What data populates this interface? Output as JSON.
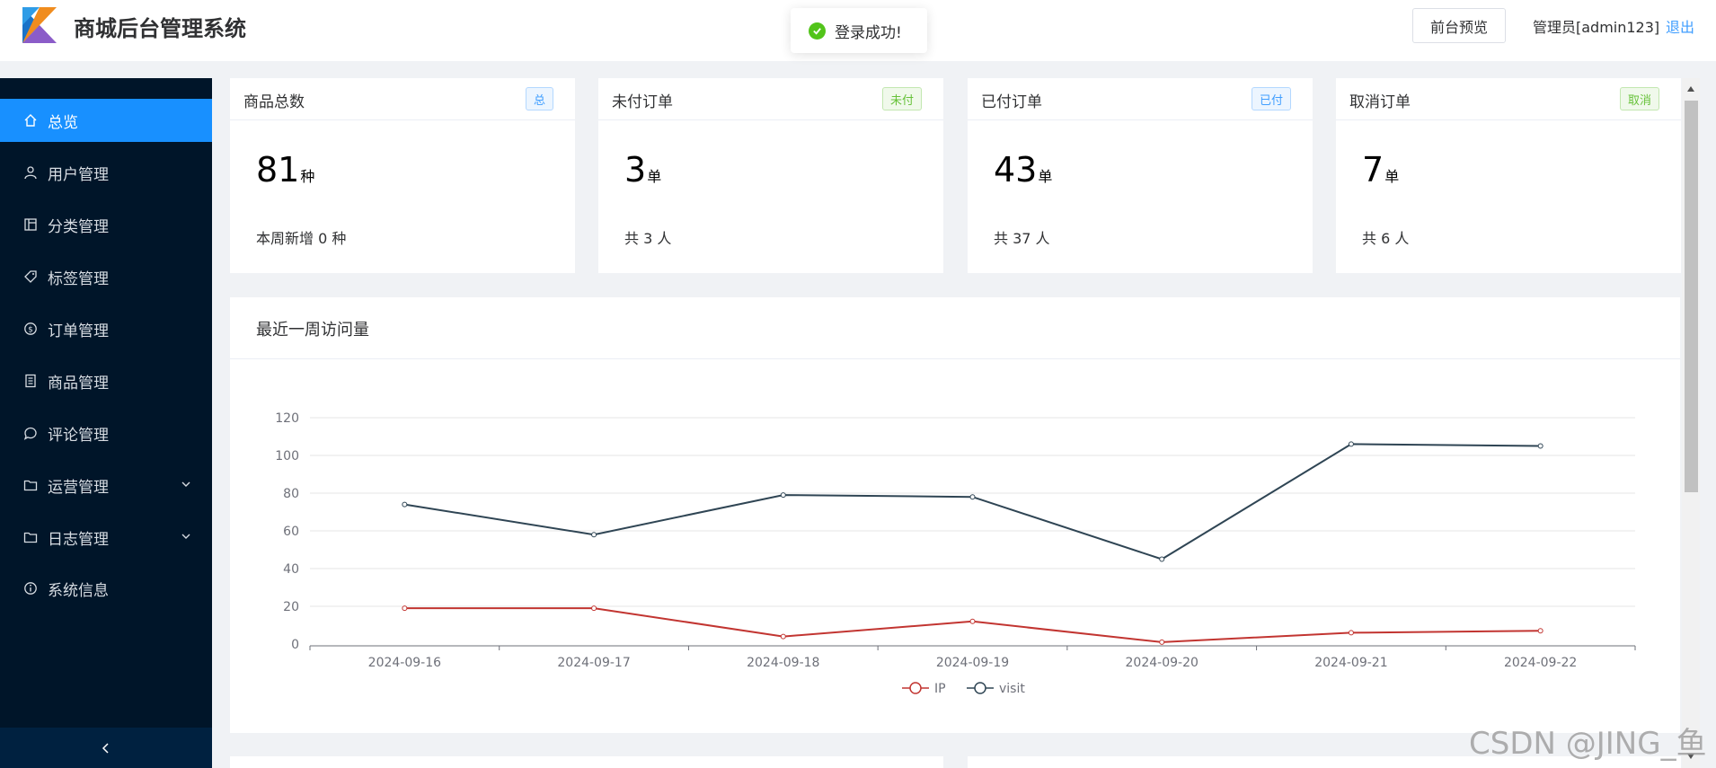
{
  "header": {
    "title": "商城后台管理系统",
    "preview_button": "前台预览",
    "admin": "管理员[admin123]",
    "logout": "退出"
  },
  "toast": {
    "message": "登录成功!"
  },
  "sidebar": {
    "items": [
      {
        "label": "总览",
        "icon": "home-icon",
        "active": true
      },
      {
        "label": "用户管理",
        "icon": "user-icon"
      },
      {
        "label": "分类管理",
        "icon": "layout-icon"
      },
      {
        "label": "标签管理",
        "icon": "tag-icon"
      },
      {
        "label": "订单管理",
        "icon": "coin-icon"
      },
      {
        "label": "商品管理",
        "icon": "list-icon"
      },
      {
        "label": "评论管理",
        "icon": "chat-icon"
      },
      {
        "label": "运营管理",
        "icon": "folder-icon",
        "expandable": true
      },
      {
        "label": "日志管理",
        "icon": "folder-icon",
        "expandable": true
      },
      {
        "label": "系统信息",
        "icon": "info-icon"
      }
    ]
  },
  "cards": [
    {
      "title": "商品总数",
      "tag": "总",
      "value": "81",
      "unit": "种",
      "sub": "本周新增 0 种"
    },
    {
      "title": "未付订单",
      "tag": "未付",
      "value": "3",
      "unit": "单",
      "sub": "共 3 人"
    },
    {
      "title": "已付订单",
      "tag": "已付",
      "value": "43",
      "unit": "单",
      "sub": "共 37 人"
    },
    {
      "title": "取消订单",
      "tag": "取消",
      "value": "7",
      "unit": "单",
      "sub": "共 6 人"
    }
  ],
  "chart_panel": {
    "title": "最近一周访问量"
  },
  "chart_data": {
    "type": "line",
    "title": "",
    "xlabel": "",
    "ylabel": "",
    "categories": [
      "2024-09-16",
      "2024-09-17",
      "2024-09-18",
      "2024-09-19",
      "2024-09-20",
      "2024-09-21",
      "2024-09-22"
    ],
    "series": [
      {
        "name": "IP",
        "values": [
          19,
          19,
          4,
          12,
          1,
          6,
          7
        ],
        "color": "#c23531"
      },
      {
        "name": "visit",
        "values": [
          74,
          58,
          79,
          78,
          45,
          106,
          105
        ],
        "color": "#2f4554"
      }
    ],
    "ylim": [
      0,
      120
    ],
    "yticks": [
      0,
      20,
      40,
      60,
      80,
      100,
      120
    ],
    "grid": true,
    "legend": "bottom-center"
  },
  "watermark": "CSDN @JING_鱼",
  "colors": {
    "sidebar_bg": "#001529",
    "active": "#1890ff",
    "link": "#409eff"
  }
}
